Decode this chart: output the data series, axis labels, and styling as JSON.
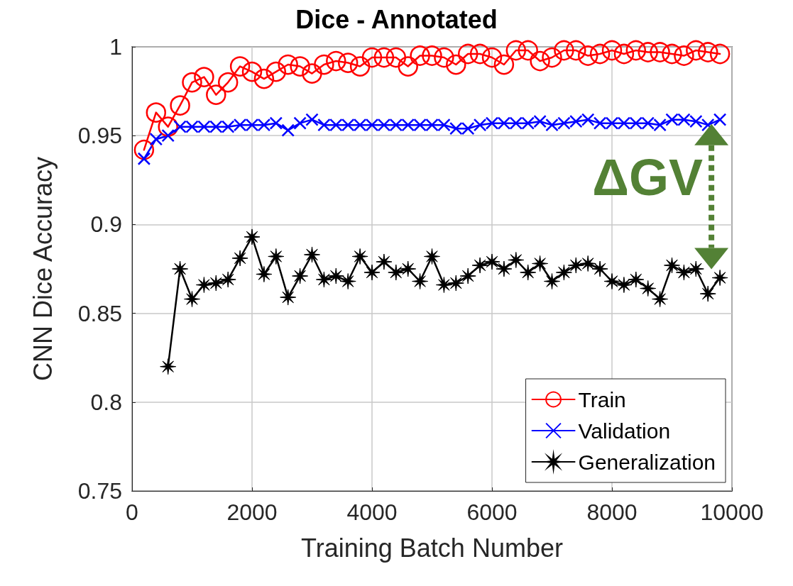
{
  "chart_data": {
    "type": "line",
    "title": "Dice - Annotated",
    "xlabel": "Training Batch Number",
    "ylabel": "CNN Dice Accuracy",
    "xlim": [
      0,
      10000
    ],
    "xticks": [
      0,
      2000,
      4000,
      6000,
      8000,
      10000
    ],
    "ylim": [
      0.75,
      1
    ],
    "yticks": [
      0.75,
      0.8,
      0.85,
      0.9,
      0.95,
      1
    ],
    "grid": true,
    "legend": "bottom right",
    "annotations": [
      "ΔGV"
    ],
    "series": [
      {
        "name": "Train",
        "color": "#ff0000",
        "marker": "circle",
        "x": [
          200,
          400,
          600,
          800,
          1000,
          1200,
          1400,
          1600,
          1800,
          2000,
          2200,
          2400,
          2600,
          2800,
          3000,
          3200,
          3400,
          3600,
          3800,
          4000,
          4200,
          4400,
          4600,
          4800,
          5000,
          5200,
          5400,
          5600,
          5800,
          6000,
          6200,
          6400,
          6600,
          6800,
          7000,
          7200,
          7400,
          7600,
          7800,
          8000,
          8200,
          8400,
          8600,
          8800,
          9000,
          9200,
          9400,
          9600,
          9800
        ],
        "values": [
          0.942,
          0.963,
          0.955,
          0.967,
          0.98,
          0.983,
          0.973,
          0.98,
          0.989,
          0.986,
          0.982,
          0.986,
          0.99,
          0.989,
          0.985,
          0.99,
          0.992,
          0.991,
          0.989,
          0.994,
          0.994,
          0.994,
          0.989,
          0.995,
          0.995,
          0.994,
          0.99,
          0.996,
          0.996,
          0.994,
          0.99,
          0.998,
          0.998,
          0.992,
          0.994,
          0.998,
          0.998,
          0.995,
          0.996,
          0.998,
          0.996,
          0.998,
          0.997,
          0.997,
          0.996,
          0.995,
          0.998,
          0.997,
          0.996
        ]
      },
      {
        "name": "Validation",
        "color": "#0000ff",
        "marker": "cross",
        "x": [
          200,
          400,
          600,
          800,
          1000,
          1200,
          1400,
          1600,
          1800,
          2000,
          2200,
          2400,
          2600,
          2800,
          3000,
          3200,
          3400,
          3600,
          3800,
          4000,
          4200,
          4400,
          4600,
          4800,
          5000,
          5200,
          5400,
          5600,
          5800,
          6000,
          6200,
          6400,
          6600,
          6800,
          7000,
          7200,
          7400,
          7600,
          7800,
          8000,
          8200,
          8400,
          8600,
          8800,
          9000,
          9200,
          9400,
          9600,
          9800
        ],
        "values": [
          0.937,
          0.948,
          0.95,
          0.955,
          0.955,
          0.955,
          0.955,
          0.955,
          0.956,
          0.956,
          0.956,
          0.957,
          0.953,
          0.957,
          0.959,
          0.956,
          0.956,
          0.956,
          0.956,
          0.956,
          0.956,
          0.956,
          0.956,
          0.956,
          0.956,
          0.956,
          0.954,
          0.954,
          0.956,
          0.957,
          0.957,
          0.957,
          0.957,
          0.958,
          0.956,
          0.957,
          0.958,
          0.959,
          0.957,
          0.957,
          0.957,
          0.957,
          0.957,
          0.956,
          0.959,
          0.959,
          0.958,
          0.956,
          0.959
        ]
      },
      {
        "name": "Generalization",
        "color": "#000000",
        "marker": "star",
        "x": [
          600,
          800,
          1000,
          1200,
          1400,
          1600,
          1800,
          2000,
          2200,
          2400,
          2600,
          2800,
          3000,
          3200,
          3400,
          3600,
          3800,
          4000,
          4200,
          4400,
          4600,
          4800,
          5000,
          5200,
          5400,
          5600,
          5800,
          6000,
          6200,
          6400,
          6600,
          6800,
          7000,
          7200,
          7400,
          7600,
          7800,
          8000,
          8200,
          8400,
          8600,
          8800,
          9000,
          9200,
          9400,
          9600,
          9800
        ],
        "values": [
          0.82,
          0.875,
          0.858,
          0.866,
          0.867,
          0.869,
          0.881,
          0.893,
          0.872,
          0.882,
          0.859,
          0.871,
          0.883,
          0.869,
          0.871,
          0.868,
          0.882,
          0.873,
          0.879,
          0.873,
          0.875,
          0.868,
          0.882,
          0.866,
          0.867,
          0.871,
          0.877,
          0.879,
          0.875,
          0.88,
          0.873,
          0.878,
          0.868,
          0.873,
          0.877,
          0.878,
          0.875,
          0.868,
          0.866,
          0.869,
          0.864,
          0.858,
          0.877,
          0.873,
          0.875,
          0.861,
          0.87
        ]
      }
    ]
  }
}
